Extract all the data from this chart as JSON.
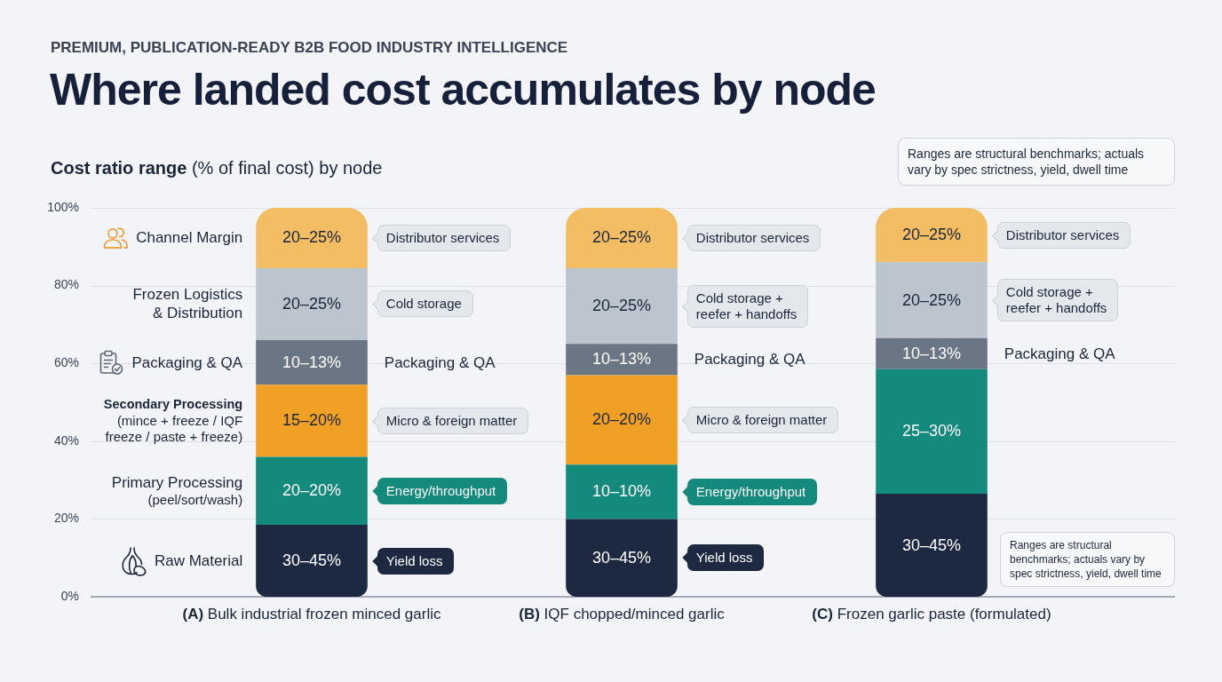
{
  "chart_data": {
    "type": "bar",
    "stacked": true,
    "title": "Where landed cost accumulates by node",
    "subtitle": "PREMIUM, PUBLICATION-READY B2B FOOD INDUSTRY INTELLIGENCE",
    "ylabel": "Cost ratio range (% of final cost) by node",
    "categories": [
      "(A) Bulk industrial frozen minced garlic",
      "(B) IQF chopped/minced garlic",
      "(C) Frozen garlic paste (formulated)"
    ],
    "ylim": [
      0,
      100
    ],
    "yticks": [
      {
        "value": 0,
        "label": "0%"
      },
      {
        "value": 20,
        "label": "20%"
      },
      {
        "value": 40,
        "label": "40%"
      },
      {
        "value": 60,
        "label": "60%"
      },
      {
        "value": 80,
        "label": "80%"
      },
      {
        "value": 100,
        "label": "100%"
      }
    ],
    "grid": "y",
    "legend": "left",
    "series": [
      {
        "name": "Raw Material",
        "color": "#1c2940",
        "values": [
          18.5,
          20,
          26.5
        ]
      },
      {
        "name": "Primary Processing (peel/sort/wash)",
        "color": "#138a7b",
        "values": [
          17.5,
          14,
          32
        ]
      },
      {
        "name": "Secondary Processing (mince + freeze / IQF freeze / paste + freeze)",
        "color": "#f0a125",
        "values": [
          18.5,
          23,
          null
        ]
      },
      {
        "name": "Packaging & QA",
        "color": "#6b7684",
        "values": [
          11.5,
          8,
          8
        ]
      },
      {
        "name": "Frozen Logistics & Distribution",
        "color": "#bcc4cd",
        "values": [
          18.5,
          19.5,
          19.5
        ]
      },
      {
        "name": "Channel Margin",
        "color": "#f2bd63",
        "values": [
          15.5,
          15.5,
          14
        ]
      }
    ],
    "annotations": [
      "Ranges are structural benchmarks; actuals vary by spec strictness, yield, dwell time",
      "20–25%",
      "Distributor services",
      "20–25%",
      "Cold storage",
      "10–13%",
      "Packaging & QA",
      "15–20%",
      "Micro & foreign matter",
      "20–20%",
      "Energy/throughput",
      "30–45%",
      "Yield loss",
      "20–25%",
      "Distributor services",
      "20–25%",
      "Cold storage + reefer + handoffs",
      "10–13%",
      "Packaging & QA",
      "20–20%",
      "Micro & foreign matter",
      "10–10%",
      "Energy/throughput",
      "30–45%",
      "Yield loss",
      "20–25%",
      "Distributor services",
      "20–25%",
      "Cold storage + reefer + handoffs",
      "10–13%",
      "Packaging & QA",
      "25–30%",
      "30–45%",
      "Ranges are structural benchmarks; actuals vary by spec strictness, yield, dwell time"
    ]
  }
}
